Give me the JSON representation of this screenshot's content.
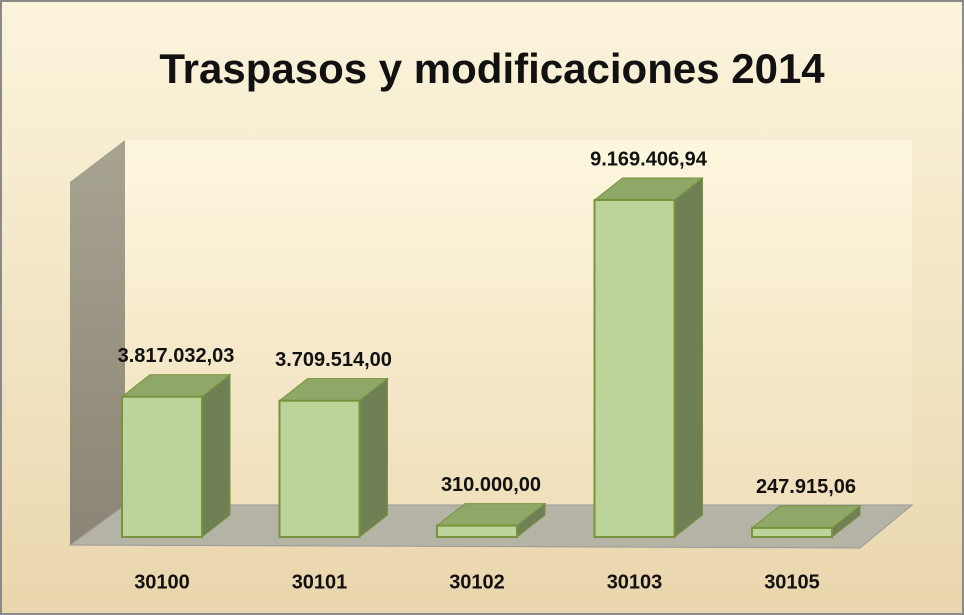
{
  "chart_data": {
    "type": "bar",
    "title": "Traspasos y modificaciones 2014",
    "categories": [
      "30100",
      "30101",
      "30102",
      "30103",
      "30105"
    ],
    "values": [
      3817032.03,
      3709514.0,
      310000.0,
      9169406.94,
      247915.06
    ],
    "value_labels": [
      "3.817.032,03",
      "3.709.514,00",
      "310.000,00",
      "9.169.406,94",
      "247.915,06"
    ],
    "color": "#bcd39a"
  }
}
